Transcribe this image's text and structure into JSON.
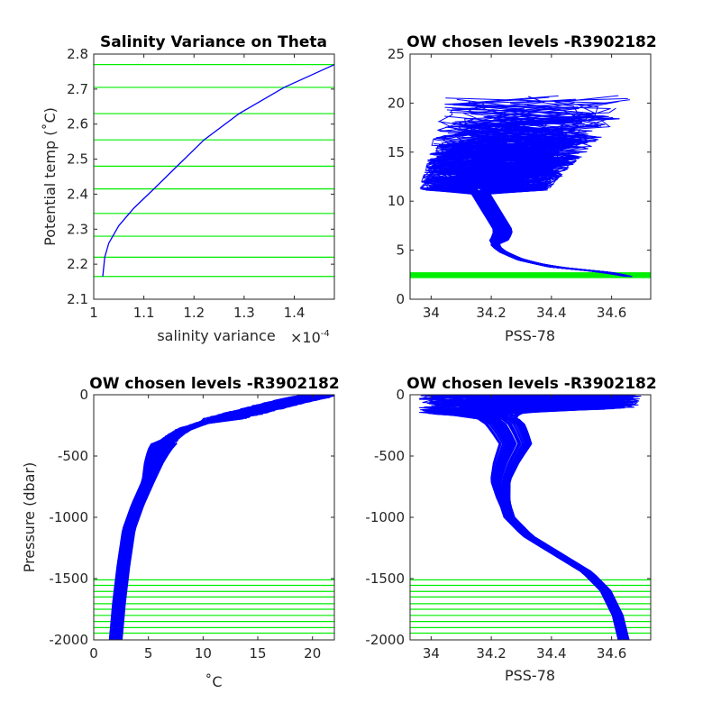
{
  "colors": {
    "profile": "#0000ff",
    "chosen_level": "#00ee00",
    "axis": "#262626"
  },
  "chart_data": [
    {
      "id": "p1",
      "type": "line",
      "title": "Salinity Variance on Theta",
      "xlabel": "salinity variance",
      "xscale_label": "×10",
      "xscale_exp": "-4",
      "ylabel": "Potential temp (˚C)",
      "xlim": [
        1.0,
        1.48
      ],
      "ylim": [
        2.1,
        2.8
      ],
      "xticks": [
        1,
        1.1,
        1.2,
        1.3,
        1.4
      ],
      "xticklabels": [
        "1",
        "1.1",
        "1.2",
        "1.3",
        "1.4"
      ],
      "yticks": [
        2.1,
        2.2,
        2.3,
        2.4,
        2.5,
        2.6,
        2.7,
        2.8
      ],
      "yticklabels": [
        "2.1",
        "2.2",
        "2.3",
        "2.4",
        "2.5",
        "2.6",
        "2.7",
        "2.8"
      ],
      "series": [
        {
          "x": [
            1.018,
            1.022,
            1.03,
            1.05,
            1.08,
            1.12,
            1.17,
            1.22,
            1.29,
            1.38,
            1.48
          ],
          "y": [
            2.165,
            2.22,
            2.26,
            2.31,
            2.36,
            2.415,
            2.485,
            2.555,
            2.63,
            2.705,
            2.77
          ]
        }
      ],
      "hlines": [
        2.165,
        2.22,
        2.28,
        2.345,
        2.415,
        2.48,
        2.555,
        2.63,
        2.705,
        2.77
      ]
    },
    {
      "id": "p2",
      "type": "line",
      "title": "OW chosen levels -R3902182",
      "xlabel": "PSS-78",
      "ylabel": "",
      "xlim": [
        33.93,
        34.73
      ],
      "ylim": [
        0,
        25
      ],
      "xticks": [
        34,
        34.2,
        34.4,
        34.6
      ],
      "xticklabels": [
        "34",
        "34.2",
        "34.4",
        "34.6"
      ],
      "yticks": [
        0,
        5,
        10,
        15,
        20,
        25
      ],
      "yticklabels": [
        "0",
        "5",
        "10",
        "15",
        "20",
        "25"
      ],
      "mean_profile": {
        "x": [
          34.66,
          34.6,
          34.5,
          34.4,
          34.3,
          34.24,
          34.21,
          34.23,
          34.24,
          34.22,
          34.2,
          34.18,
          34.16,
          34.14,
          34.12,
          34.1
        ],
        "y": [
          2.3,
          2.7,
          3.0,
          3.3,
          4.0,
          4.8,
          5.5,
          6.2,
          7.0,
          8.0,
          9.0,
          10.0,
          11.0,
          12.0,
          13.0,
          14.0
        ]
      },
      "upper_range": {
        "y": [
          10,
          21
        ],
        "xmin": [
          33.95,
          34.05
        ],
        "xmax": [
          34.35,
          34.72
        ]
      },
      "chosen_band": [
        2.15,
        2.75
      ]
    },
    {
      "id": "p3",
      "type": "line",
      "title": "OW chosen levels -R3902182",
      "xlabel": "˚C",
      "ylabel": "Pressure (dbar)",
      "xlim": [
        0,
        22
      ],
      "ylim": [
        -2000,
        0
      ],
      "xticks": [
        0,
        5,
        10,
        15,
        20
      ],
      "xticklabels": [
        "0",
        "5",
        "10",
        "15",
        "20"
      ],
      "yticks": [
        -2000,
        -1500,
        -1000,
        -500,
        0
      ],
      "yticklabels": [
        "-2000",
        "-1500",
        "-1000",
        "-500",
        "0"
      ],
      "mean_profile": {
        "x": [
          2.0,
          2.3,
          2.7,
          3.2,
          4.0,
          5.0,
          5.5,
          6.0,
          6.8,
          8.0,
          10.0,
          13.0,
          16.0,
          20.0
        ],
        "y": [
          -2000,
          -1700,
          -1400,
          -1100,
          -900,
          -700,
          -550,
          -450,
          -350,
          -280,
          -220,
          -150,
          -80,
          0
        ]
      },
      "spread": 0.6,
      "hlines": [
        -1510,
        -1555,
        -1605,
        -1650,
        -1705,
        -1750,
        -1800,
        -1850,
        -1900,
        -1945
      ]
    },
    {
      "id": "p4",
      "type": "line",
      "title": "OW chosen levels -R3902182",
      "xlabel": "PSS-78",
      "ylabel": "",
      "xlim": [
        33.93,
        34.73
      ],
      "ylim": [
        -2000,
        0
      ],
      "xticks": [
        34,
        34.2,
        34.4,
        34.6
      ],
      "xticklabels": [
        "34",
        "34.2",
        "34.4",
        "34.6"
      ],
      "yticks": [
        -2000,
        -1500,
        -1000,
        -500,
        0
      ],
      "yticklabels": [
        "-2000",
        "-1500",
        "-1000",
        "-500",
        "0"
      ],
      "mean_profile": {
        "x": [
          34.64,
          34.62,
          34.58,
          34.52,
          34.42,
          34.32,
          34.26,
          34.24,
          34.23,
          34.25,
          34.28,
          34.26,
          34.24,
          34.2,
          34.1
        ],
        "y": [
          -2000,
          -1800,
          -1600,
          -1450,
          -1300,
          -1150,
          -1000,
          -850,
          -700,
          -550,
          -400,
          -300,
          -220,
          -170,
          -100
        ]
      },
      "spread": 0.018,
      "hlines": [
        -1510,
        -1555,
        -1605,
        -1650,
        -1705,
        -1750,
        -1800,
        -1850,
        -1900,
        -1945
      ]
    }
  ]
}
